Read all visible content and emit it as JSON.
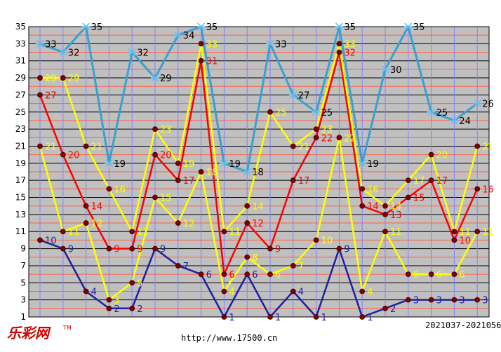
{
  "brand": {
    "logo_text": "乐彩网",
    "trademark": "TM"
  },
  "footer": {
    "url": "http://www.17500.cn",
    "range": "2021037-2021056"
  },
  "colors": {
    "plot_bg": "#c0c0c0",
    "grid_h": "#ff6040",
    "grid_v": "#8080ff",
    "blue_top": "#3aa0d0",
    "red": "#ff0000",
    "yellow": "#ffff00",
    "navy": "#2020a0",
    "marker": "#800000"
  },
  "chart_data": {
    "type": "line",
    "x": [
      1,
      2,
      3,
      4,
      5,
      6,
      7,
      8,
      9,
      10,
      11,
      12,
      13,
      14,
      15,
      16,
      17,
      18,
      19,
      20
    ],
    "ylim": [
      1,
      35
    ],
    "yticks": [
      1,
      3,
      5,
      7,
      9,
      11,
      13,
      15,
      17,
      19,
      21,
      23,
      25,
      27,
      29,
      31,
      33,
      35
    ],
    "grid": true,
    "series": [
      {
        "key": "s1",
        "values": [
          10,
          9,
          4,
          2,
          2,
          9,
          7,
          6,
          1,
          6,
          1,
          4,
          1,
          9,
          1,
          2,
          3,
          3,
          3,
          3
        ]
      },
      {
        "key": "s2",
        "values": [
          21,
          11,
          12,
          3,
          5,
          15,
          12,
          18,
          4,
          8,
          6,
          7,
          10,
          22,
          4,
          11,
          6,
          6,
          6,
          11
        ]
      },
      {
        "key": "s3",
        "values": [
          27,
          20,
          14,
          9,
          9,
          20,
          17,
          31,
          6,
          12,
          9,
          17,
          22,
          32,
          14,
          13,
          15,
          17,
          10,
          16
        ]
      },
      {
        "key": "s4",
        "values": [
          29,
          29,
          21,
          16,
          11,
          23,
          19,
          33,
          11,
          14,
          25,
          21,
          23,
          33,
          16,
          14,
          17,
          20,
          11,
          21
        ]
      },
      {
        "key": "s5",
        "values": [
          33,
          32,
          35,
          19,
          32,
          29,
          34,
          35,
          19,
          18,
          33,
          27,
          25,
          35,
          19,
          30,
          35,
          25,
          24,
          26
        ]
      }
    ]
  }
}
